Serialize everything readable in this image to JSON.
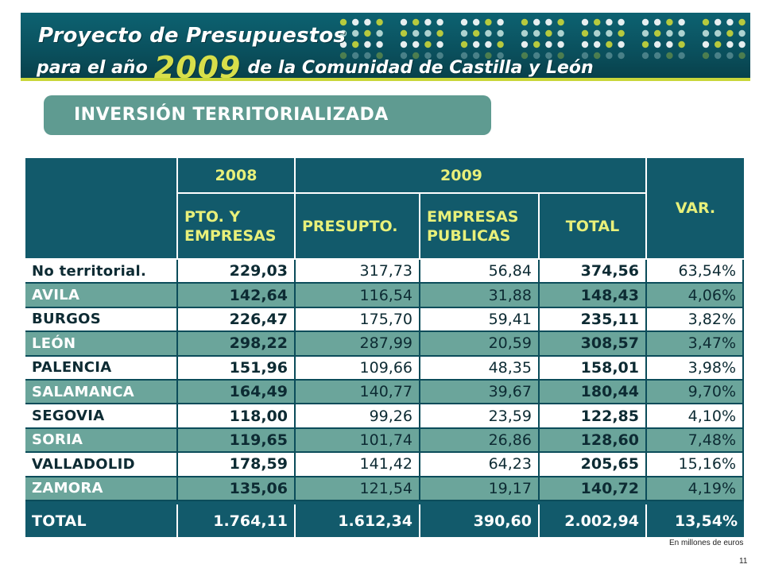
{
  "header": {
    "title_line1": "Proyecto de Presupuestos",
    "title_line2_pre": "para el año",
    "title_year": "2009",
    "title_line2_post": "de la Comunidad de Castilla y León"
  },
  "section": {
    "title": "INVERSIÓN TERRITORIALIZADA"
  },
  "table": {
    "header": {
      "y2008": "2008",
      "y2009": "2009",
      "var": "VAR.",
      "pto_line1": "PTO. Y",
      "pto_line2": "EMPRESAS",
      "presupto": "PRESUPTO.",
      "emp_line1": "EMPRESAS",
      "emp_line2": "PUBLICAS",
      "total": "TOTAL"
    },
    "rows": [
      {
        "label": "No territorial.",
        "v2008": "229,03",
        "presupto": "317,73",
        "empresas": "56,84",
        "total": "374,56",
        "var": "63,54%"
      },
      {
        "label": "AVILA",
        "v2008": "142,64",
        "presupto": "116,54",
        "empresas": "31,88",
        "total": "148,43",
        "var": "4,06%"
      },
      {
        "label": "BURGOS",
        "v2008": "226,47",
        "presupto": "175,70",
        "empresas": "59,41",
        "total": "235,11",
        "var": "3,82%"
      },
      {
        "label": "LEÓN",
        "v2008": "298,22",
        "presupto": "287,99",
        "empresas": "20,59",
        "total": "308,57",
        "var": "3,47%"
      },
      {
        "label": "PALENCIA",
        "v2008": "151,96",
        "presupto": "109,66",
        "empresas": "48,35",
        "total": "158,01",
        "var": "3,98%"
      },
      {
        "label": "SALAMANCA",
        "v2008": "164,49",
        "presupto": "140,77",
        "empresas": "39,67",
        "total": "180,44",
        "var": "9,70%"
      },
      {
        "label": "SEGOVIA",
        "v2008": "118,00",
        "presupto": "99,26",
        "empresas": "23,59",
        "total": "122,85",
        "var": "4,10%"
      },
      {
        "label": "SORIA",
        "v2008": "119,65",
        "presupto": "101,74",
        "empresas": "26,86",
        "total": "128,60",
        "var": "7,48%"
      },
      {
        "label": "VALLADOLID",
        "v2008": "178,59",
        "presupto": "141,42",
        "empresas": "64,23",
        "total": "205,65",
        "var": "15,16%"
      },
      {
        "label": "ZAMORA",
        "v2008": "135,06",
        "presupto": "121,54",
        "empresas": "19,17",
        "total": "140,72",
        "var": "4,19%"
      }
    ],
    "total_row": {
      "label": "TOTAL",
      "v2008": "1.764,11",
      "presupto": "1.612,34",
      "empresas": "390,60",
      "total": "2.002,94",
      "var": "13,54%"
    }
  },
  "footer": {
    "note": "En millones de euros",
    "page_number": "11"
  },
  "colors": {
    "dark_teal": "#125a6b",
    "row_teal": "#6ba59b",
    "accent_yellow": "#e8f07a",
    "section_tab": "#5f9b91"
  }
}
